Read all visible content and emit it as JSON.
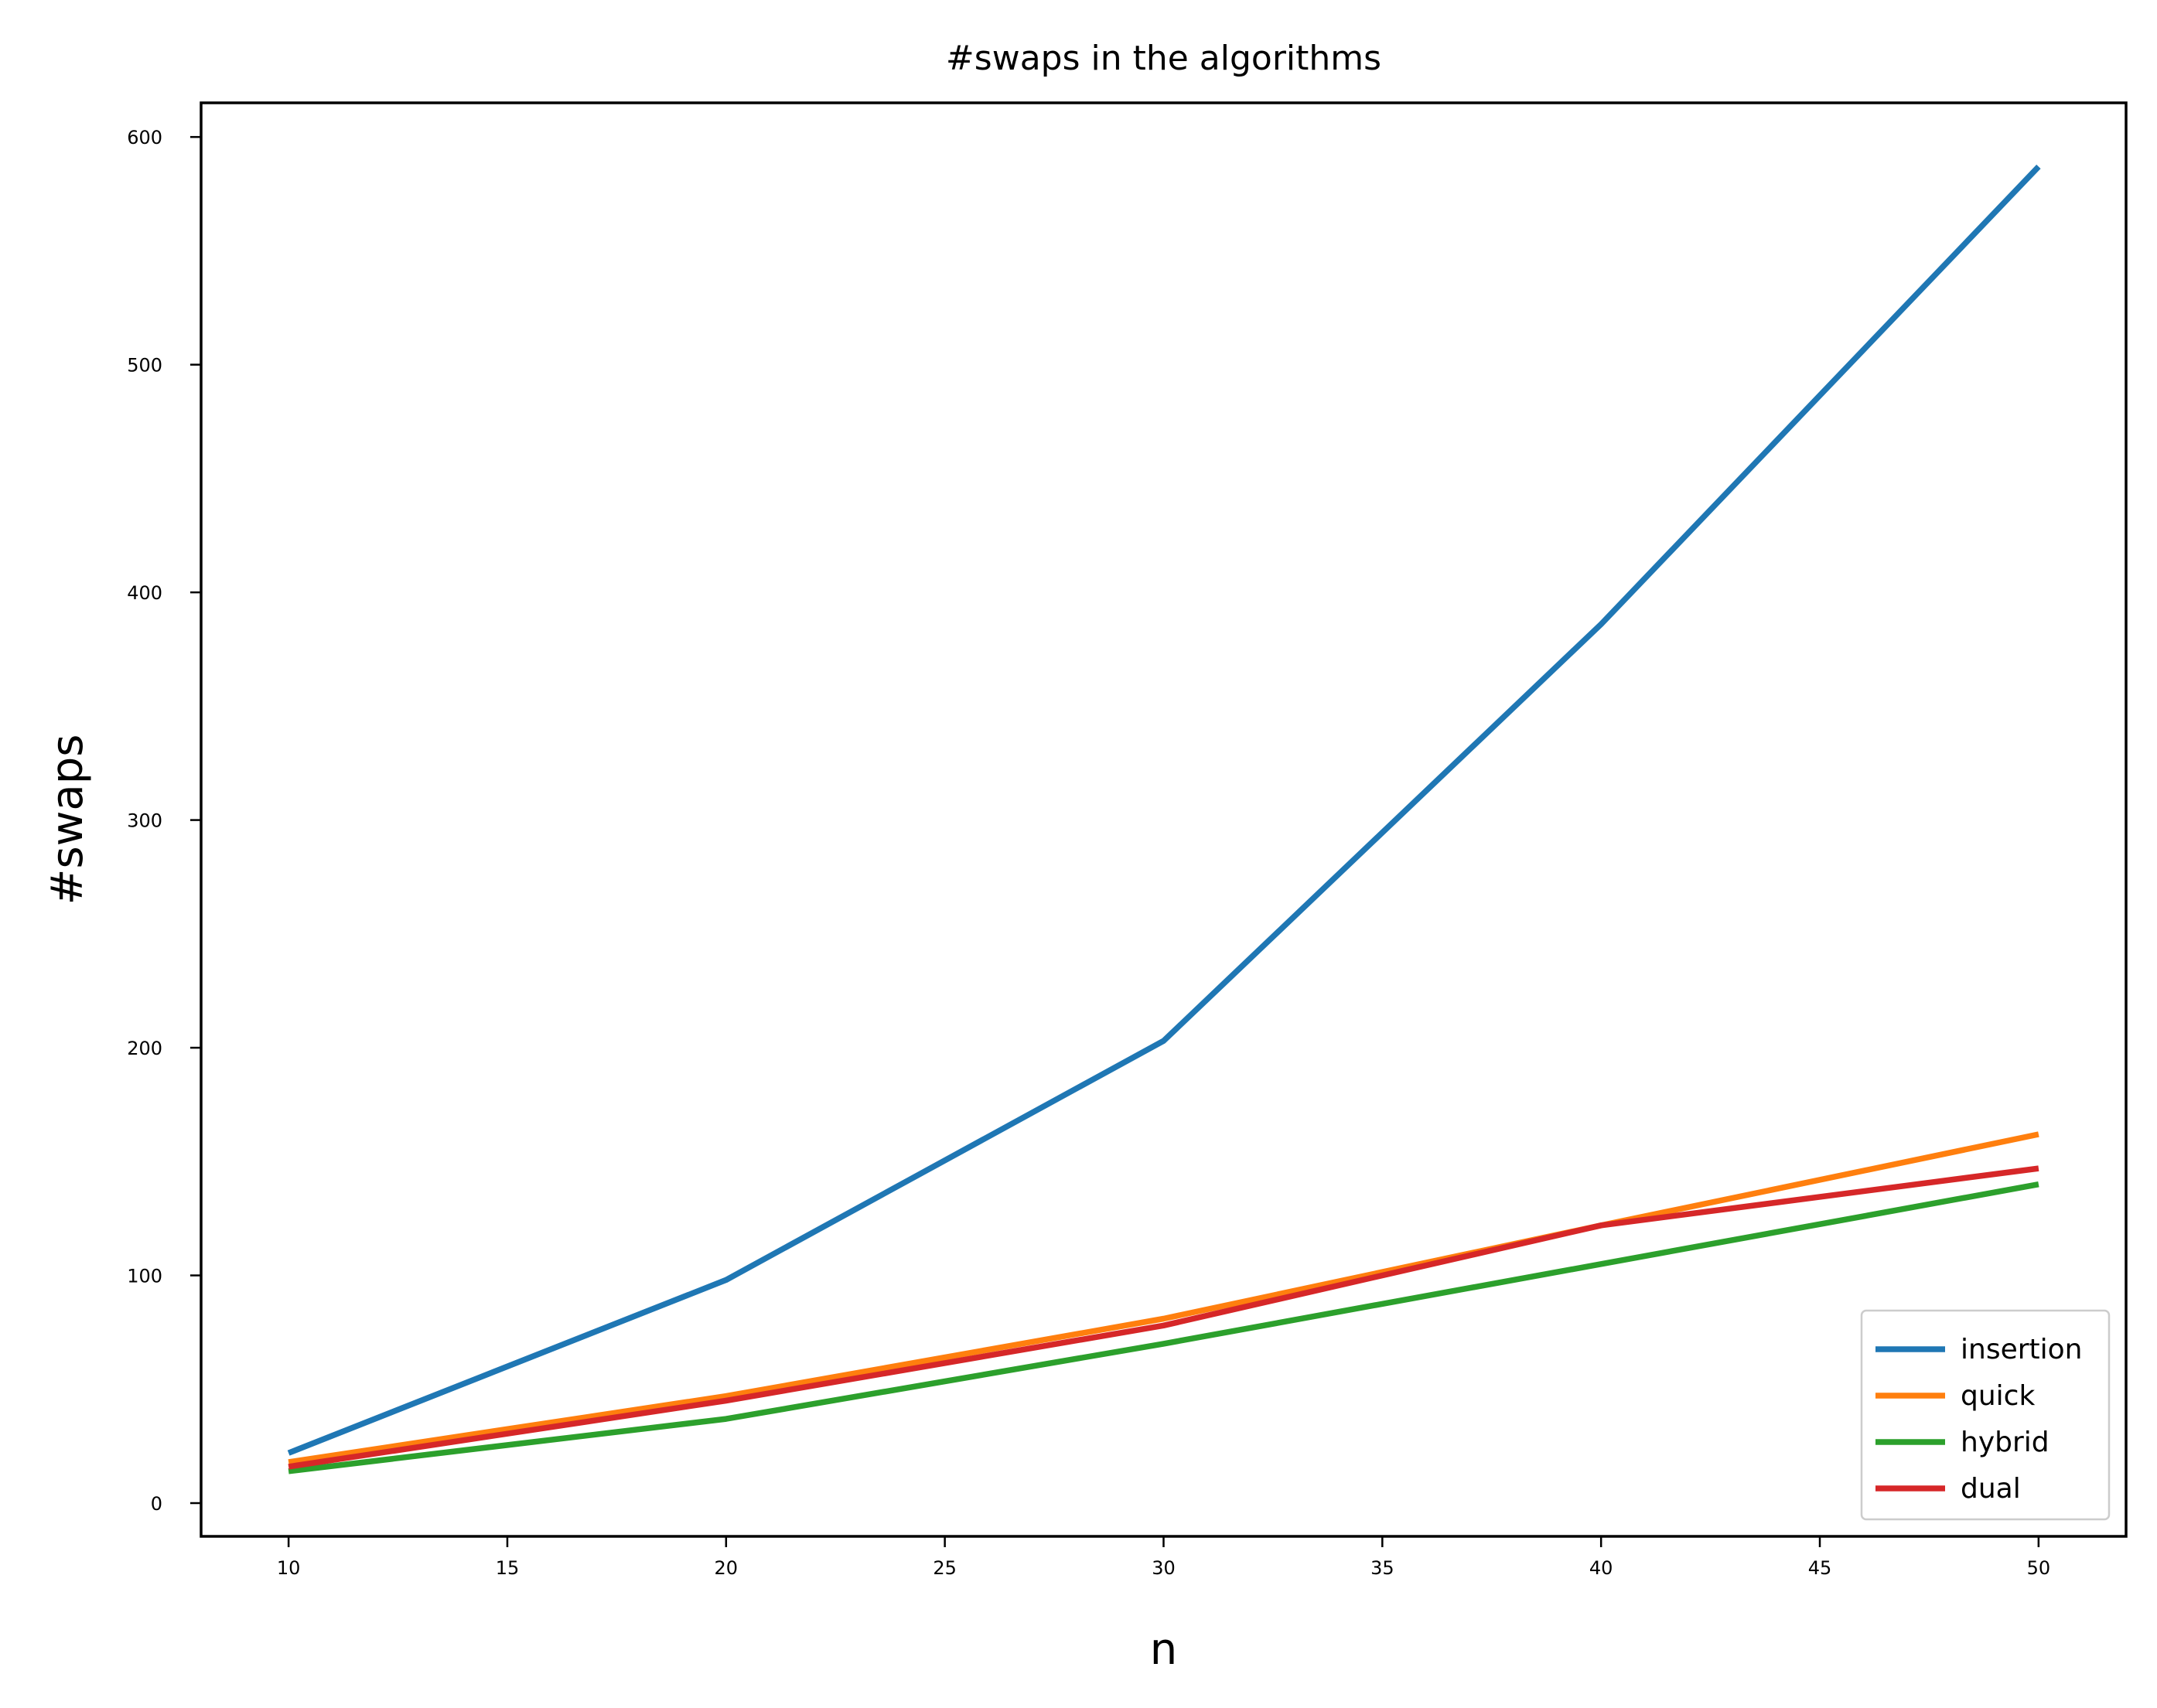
{
  "chart_data": {
    "type": "line",
    "title": "#swaps in the algorithms",
    "xlabel": "n",
    "ylabel": "#swaps",
    "x": [
      10,
      20,
      30,
      40,
      50
    ],
    "series": [
      {
        "name": "insertion",
        "color": "#1f77b4",
        "values": [
          22,
          98,
          203,
          386,
          587
        ]
      },
      {
        "name": "quick",
        "color": "#ff7f0e",
        "values": [
          18,
          47,
          81,
          122,
          162
        ]
      },
      {
        "name": "hybrid",
        "color": "#2ca02c",
        "values": [
          14,
          37,
          70,
          105,
          140
        ]
      },
      {
        "name": "dual",
        "color": "#d62728",
        "values": [
          16,
          45,
          78,
          122,
          147
        ]
      }
    ],
    "xlim": [
      8,
      52
    ],
    "ylim": [
      -14.6,
      615
    ],
    "xticks": [
      10,
      15,
      20,
      25,
      30,
      35,
      40,
      45,
      50
    ],
    "yticks": [
      0,
      100,
      200,
      300,
      400,
      500,
      600
    ],
    "grid": false,
    "legend_position": "lower-right"
  }
}
